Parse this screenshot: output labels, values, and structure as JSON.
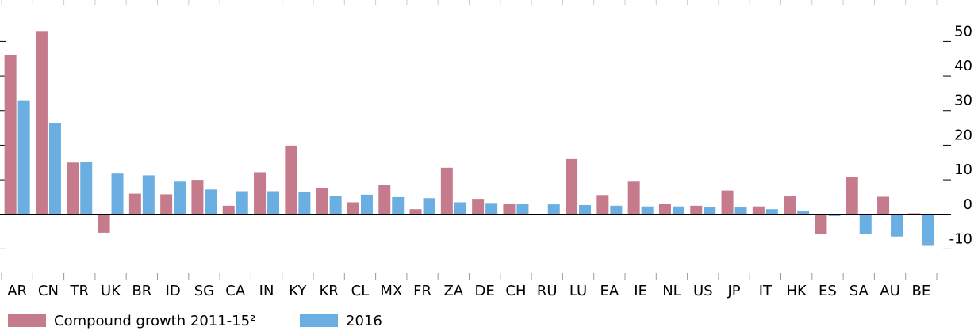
{
  "chart_data": {
    "type": "bar",
    "categories": [
      "AR",
      "CN",
      "TR",
      "UK",
      "BR",
      "ID",
      "SG",
      "CA",
      "IN",
      "KY",
      "KR",
      "CL",
      "MX",
      "FR",
      "ZA",
      "DE",
      "CH",
      "RU",
      "LU",
      "EA",
      "IE",
      "NL",
      "US",
      "JP",
      "IT",
      "HK",
      "ES",
      "SA",
      "AU",
      "BE"
    ],
    "series": [
      {
        "name": "Compound growth 2011-15²",
        "color": "#c57b8c",
        "values": [
          46,
          53,
          15,
          -5.3,
          6,
          5.8,
          10,
          2.5,
          12.2,
          19.9,
          7.6,
          3.5,
          8.5,
          1.5,
          13.5,
          4.5,
          3.1,
          null,
          16,
          5.6,
          9.5,
          3,
          2.5,
          6.9,
          2.3,
          5.2,
          -5.7,
          10.8,
          5.1,
          0.3
        ]
      },
      {
        "name": "2016",
        "color": "#6aaee2",
        "values": [
          33,
          26.5,
          15.2,
          11.8,
          11.3,
          9.5,
          7.2,
          6.7,
          6.7,
          6.5,
          5.3,
          5.7,
          5,
          4.7,
          3.5,
          3.3,
          3.1,
          2.9,
          2.7,
          2.5,
          2.3,
          2.3,
          2.2,
          2.1,
          1.5,
          1.1,
          -0.5,
          -5.7,
          -6.4,
          -9.1
        ]
      }
    ],
    "ylim": [
      -17,
      62
    ],
    "yticks": [
      -10,
      0,
      10,
      20,
      30,
      40,
      50
    ],
    "y_axis_side": "right",
    "legend": "bottom"
  }
}
